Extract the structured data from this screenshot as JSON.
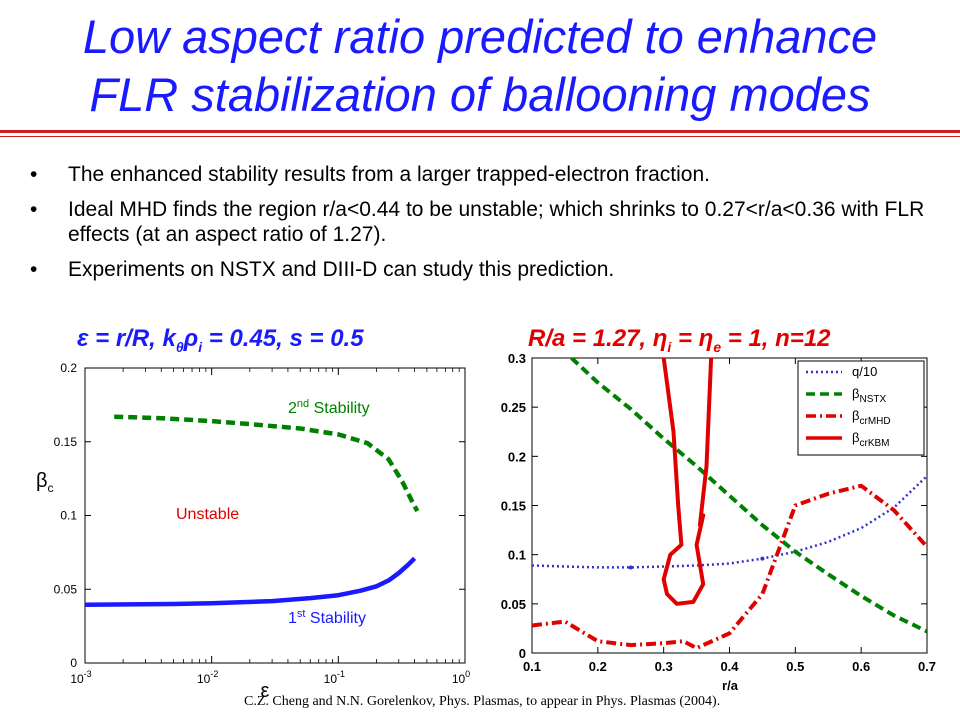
{
  "title": {
    "line1": "Low aspect ratio predicted to enhance",
    "line2": "FLR stabilization of ballooning modes"
  },
  "bullets": [
    "The enhanced stability results from a larger trapped-electron fraction.",
    "Ideal MHD finds the region r/a<0.44 to be unstable; which shrinks to 0.27<r/a<0.36 with FLR effects (at an aspect ratio of 1.27).",
    "Experiments on NSTX and DIII-D can study this prediction."
  ],
  "captions": {
    "left": {
      "pre": "ε = r/R, k",
      "sub1": "θ",
      "mid": "ρ",
      "sub2": "i",
      "post": " = 0.45, s = 0.5"
    },
    "right": {
      "pre": "R/a = 1.27, η",
      "sub1": "i",
      "mid": " = η",
      "sub2": "e",
      "post": " = 1, n=12"
    }
  },
  "reference": "C.Z. Cheng and N.N. Gorelenkov, Phys. Plasmas, to appear in Phys. Plasmas (2004).",
  "colors": {
    "title": "#1a1aff",
    "rule": "#cc1f1f",
    "blue": "#1a1aff",
    "green": "#008000",
    "red": "#e00000",
    "q_dotted": "#3333cc"
  },
  "chart_data": [
    {
      "type": "line",
      "xscale": "log",
      "xlim": [
        0.001,
        1
      ],
      "ylim": [
        0,
        0.2
      ],
      "xlabel": "ε",
      "ylabel": "β",
      "ylabel_sub": "c",
      "xticks": [
        {
          "value": 0.001,
          "base": "10",
          "exp": "-3"
        },
        {
          "value": 0.01,
          "base": "10",
          "exp": "-2"
        },
        {
          "value": 0.1,
          "base": "10",
          "exp": "-1"
        },
        {
          "value": 1,
          "base": "10",
          "exp": "0"
        }
      ],
      "yticks": [
        {
          "value": 0,
          "label": "0"
        },
        {
          "value": 0.05,
          "label": "0.05"
        },
        {
          "value": 0.1,
          "label": "0.1"
        },
        {
          "value": 0.15,
          "label": "0.15"
        },
        {
          "value": 0.2,
          "label": "0.2"
        }
      ],
      "series": [
        {
          "key": "second",
          "style": "dashed",
          "color": "#008000",
          "x": [
            0.0017,
            0.004,
            0.01,
            0.02,
            0.05,
            0.1,
            0.17,
            0.25,
            0.32,
            0.38,
            0.42
          ],
          "y": [
            0.167,
            0.166,
            0.164,
            0.162,
            0.159,
            0.155,
            0.149,
            0.138,
            0.123,
            0.11,
            0.103
          ]
        },
        {
          "key": "first",
          "style": "solid",
          "color": "#1a1aff",
          "x": [
            0.001,
            0.005,
            0.01,
            0.03,
            0.06,
            0.1,
            0.15,
            0.2,
            0.25,
            0.3,
            0.35,
            0.4
          ],
          "y": [
            0.0395,
            0.04,
            0.0405,
            0.042,
            0.044,
            0.046,
            0.049,
            0.052,
            0.056,
            0.061,
            0.066,
            0.071
          ]
        }
      ],
      "annotations": {
        "second": {
          "num": "2",
          "sup": "nd",
          "text": " Stability"
        },
        "unstable": "Unstable",
        "first": {
          "num": "1",
          "sup": "st",
          "text": " Stability"
        }
      }
    },
    {
      "type": "line",
      "xlim": [
        0.1,
        0.7
      ],
      "ylim": [
        0,
        0.3
      ],
      "xlabel": "r/a",
      "xticks": [
        "0.1",
        "0.2",
        "0.3",
        "0.4",
        "0.5",
        "0.6",
        "0.7"
      ],
      "yticks": [
        "0",
        "0.05",
        "0.1",
        "0.15",
        "0.2",
        "0.25",
        "0.3"
      ],
      "legend_position": "top-right",
      "series": [
        {
          "name": "q/10",
          "style": "dotted",
          "color": "#3333cc",
          "x": [
            0.1,
            0.15,
            0.2,
            0.25,
            0.3,
            0.35,
            0.4,
            0.45,
            0.5,
            0.55,
            0.6,
            0.65,
            0.7
          ],
          "y": [
            0.089,
            0.088,
            0.087,
            0.087,
            0.088,
            0.089,
            0.091,
            0.096,
            0.103,
            0.113,
            0.127,
            0.148,
            0.18
          ]
        },
        {
          "name": "β",
          "name_sub": "NSTX",
          "style": "dashed",
          "color": "#008000",
          "x": [
            0.16,
            0.2,
            0.25,
            0.3,
            0.35,
            0.4,
            0.45,
            0.5,
            0.55,
            0.6,
            0.65,
            0.7
          ],
          "y": [
            0.3,
            0.275,
            0.248,
            0.218,
            0.19,
            0.16,
            0.13,
            0.103,
            0.08,
            0.058,
            0.038,
            0.022
          ]
        },
        {
          "name": "β",
          "name_sub": "crMHD",
          "style": "dashdot",
          "color": "#e00000",
          "x": [
            0.1,
            0.15,
            0.2,
            0.25,
            0.3,
            0.33,
            0.35,
            0.4,
            0.45,
            0.5,
            0.55,
            0.6,
            0.65,
            0.7
          ],
          "y": [
            0.028,
            0.032,
            0.012,
            0.008,
            0.01,
            0.012,
            0.005,
            0.02,
            0.06,
            0.15,
            0.162,
            0.17,
            0.145,
            0.108
          ]
        },
        {
          "name": "β",
          "name_sub": "crKBM",
          "style": "solid",
          "color": "#e00000",
          "x": [
            0.3,
            0.315,
            0.322,
            0.327,
            0.31,
            0.3,
            0.305,
            0.32,
            0.345,
            0.36,
            0.35,
            0.36,
            0.355,
            0.365,
            0.372
          ],
          "y": [
            0.3,
            0.225,
            0.15,
            0.11,
            0.1,
            0.075,
            0.06,
            0.05,
            0.052,
            0.07,
            0.11,
            0.14,
            0.13,
            0.19,
            0.3
          ]
        }
      ]
    }
  ]
}
